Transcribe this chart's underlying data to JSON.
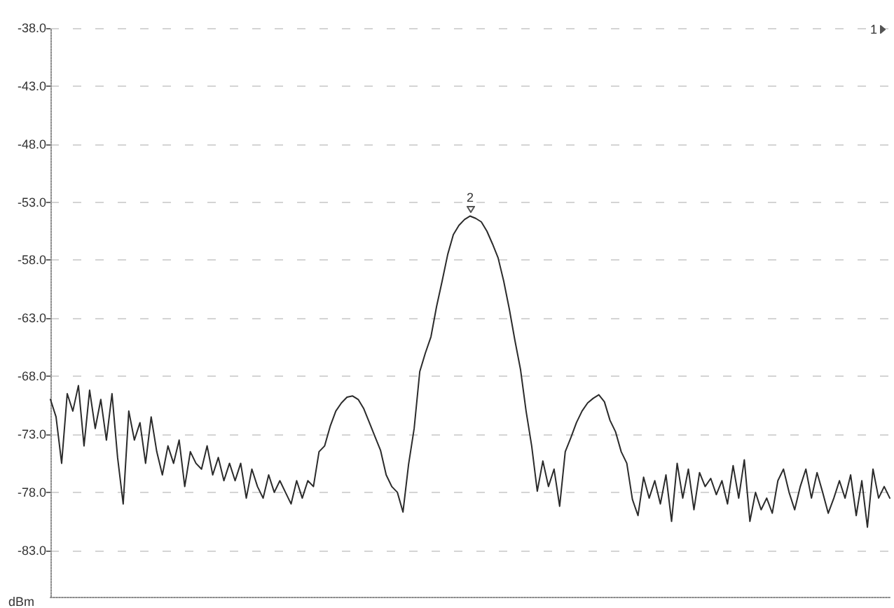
{
  "chart_data": {
    "type": "line",
    "ylabel": "dBm",
    "categories": [
      null,
      null,
      null,
      null,
      null,
      null,
      null,
      null,
      null,
      null,
      null,
      null,
      null,
      null,
      null,
      null,
      null,
      null,
      null,
      null,
      null,
      null,
      null,
      null,
      null,
      null,
      null,
      null,
      null,
      null,
      null,
      null,
      null,
      null,
      null,
      null,
      null,
      null,
      null,
      null,
      null,
      null,
      null,
      null,
      null,
      null,
      null,
      null,
      null,
      null,
      null,
      null,
      null,
      null,
      null,
      null,
      null,
      null,
      null,
      null,
      null,
      null,
      null,
      null,
      null,
      null,
      null,
      null,
      null,
      null,
      null,
      null,
      null,
      null,
      null,
      null,
      null,
      null,
      null,
      null,
      null,
      null,
      null,
      null,
      null,
      null,
      null,
      null,
      null,
      null,
      null,
      null,
      null,
      null,
      null,
      null,
      null,
      null,
      null,
      null,
      null,
      null,
      null,
      null,
      null,
      null,
      null,
      null,
      null,
      null,
      null,
      null,
      null,
      null,
      null,
      null,
      null,
      null,
      null,
      null,
      null,
      null,
      null,
      null,
      null,
      null,
      null,
      null,
      null,
      null,
      null,
      null,
      null,
      null,
      null,
      null,
      null,
      null,
      null,
      null,
      null,
      null,
      null,
      null,
      null,
      null,
      null,
      null,
      null,
      null,
      null
    ],
    "series": [
      {
        "color": "#2b2b2b",
        "values": [
          -70.0,
          -71.5,
          -75.5,
          -69.5,
          -71.0,
          -68.8,
          -74.0,
          -69.2,
          -72.5,
          -70.0,
          -73.5,
          -69.5,
          -75.0,
          -79.0,
          -71.0,
          -73.5,
          -72.0,
          -75.5,
          -71.5,
          -74.5,
          -76.5,
          -74.0,
          -75.5,
          -73.5,
          -77.5,
          -74.5,
          -75.5,
          -76.0,
          -74.0,
          -76.5,
          -75.0,
          -77.0,
          -75.5,
          -77.0,
          -75.5,
          -78.5,
          -76.0,
          -77.5,
          -78.5,
          -76.5,
          -78.0,
          -77.0,
          -78.0,
          -79.0,
          -77.0,
          -78.5,
          -77.0,
          -77.5,
          -74.5,
          -74.0,
          -72.3,
          -71.0,
          -70.3,
          -69.8,
          -69.7,
          -70.0,
          -70.8,
          -72.0,
          -73.2,
          -74.4,
          -76.5,
          -77.5,
          -78.0,
          -79.7,
          -75.6,
          -72.5,
          -67.6,
          -66.0,
          -64.6,
          -62.0,
          -59.8,
          -57.5,
          -55.8,
          -55.0,
          -54.5,
          -54.2,
          -54.4,
          -54.7,
          -55.5,
          -56.6,
          -57.8,
          -59.8,
          -62.2,
          -64.9,
          -67.4,
          -71.0,
          -74.0,
          -77.9,
          -75.3,
          -77.5,
          -76.0,
          -79.2,
          -74.5,
          -73.3,
          -72.0,
          -71.0,
          -70.3,
          -69.9,
          -69.6,
          -70.2,
          -71.8,
          -72.8,
          -74.5,
          -75.5,
          -78.6,
          -80.0,
          -76.7,
          -78.5,
          -77.0,
          -79.0,
          -76.5,
          -80.5,
          -75.5,
          -78.5,
          -76.0,
          -79.5,
          -76.3,
          -77.5,
          -76.8,
          -78.2,
          -77.0,
          -79.0,
          -75.7,
          -78.5,
          -75.2,
          -80.5,
          -78.0,
          -79.5,
          -78.5,
          -79.8,
          -77.0,
          -76.0,
          -78.0,
          -79.5,
          -77.5,
          -76.0,
          -78.5,
          -76.3,
          -78.0,
          -79.8,
          -78.5,
          -77.0,
          -78.5,
          -76.5,
          -80.0,
          -77.0,
          -81.0,
          -76.0,
          -78.5,
          -77.5,
          -78.5
        ]
      }
    ],
    "ylim": [
      -87,
      -38
    ],
    "yticks": [
      {
        "value": -38,
        "label": "-38.0"
      },
      {
        "value": -43,
        "label": "-43.0"
      },
      {
        "value": -48,
        "label": "-48.0"
      },
      {
        "value": -53,
        "label": "-53.0"
      },
      {
        "value": -58,
        "label": "-58.0"
      },
      {
        "value": -63,
        "label": "-63.0"
      },
      {
        "value": -68,
        "label": "-68.0"
      },
      {
        "value": -73,
        "label": "-73.0"
      },
      {
        "value": -78,
        "label": "-78.0"
      },
      {
        "value": -83,
        "label": "-83.0"
      }
    ],
    "grid": "y",
    "annotations": [
      {
        "text": "2",
        "y": -54.2
      },
      "1"
    ]
  }
}
